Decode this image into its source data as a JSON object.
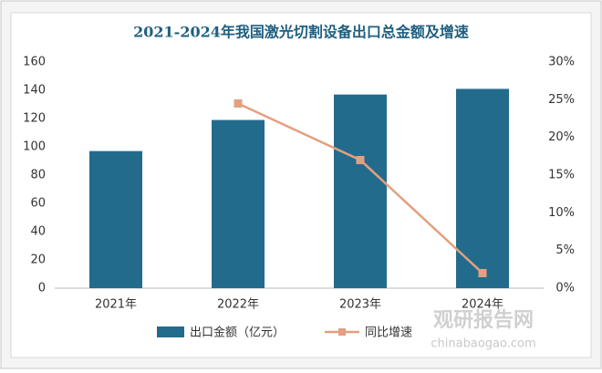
{
  "chart_data": {
    "type": "bar",
    "title": "2021-2024年我国激光切割设备出口总金额及增速",
    "categories": [
      "2021年",
      "2022年",
      "2023年",
      "2024年"
    ],
    "series": [
      {
        "name": "出口金额（亿元）",
        "type": "bar",
        "color": "#236b8c",
        "values": [
          97,
          119,
          137,
          141
        ]
      },
      {
        "name": "同比增速",
        "type": "line",
        "color": "#e3a07f",
        "axis": "y2",
        "values": [
          null,
          24.5,
          17,
          2
        ]
      }
    ],
    "ylim": [
      0,
      160
    ],
    "yticks": [
      0,
      20,
      40,
      60,
      80,
      100,
      120,
      140,
      160
    ],
    "y2lim": [
      0,
      30
    ],
    "y2ticks": [
      {
        "value": 0,
        "label": "0%"
      },
      {
        "value": 5,
        "label": "5%"
      },
      {
        "value": 10,
        "label": "10%"
      },
      {
        "value": 15,
        "label": "15%"
      },
      {
        "value": 20,
        "label": "20%"
      },
      {
        "value": 25,
        "label": "25%"
      },
      {
        "value": 30,
        "label": "30%"
      }
    ],
    "grid": false,
    "legend": "bottom"
  },
  "watermark": {
    "name": "观研报告网",
    "url": "chinabaogao.com"
  }
}
